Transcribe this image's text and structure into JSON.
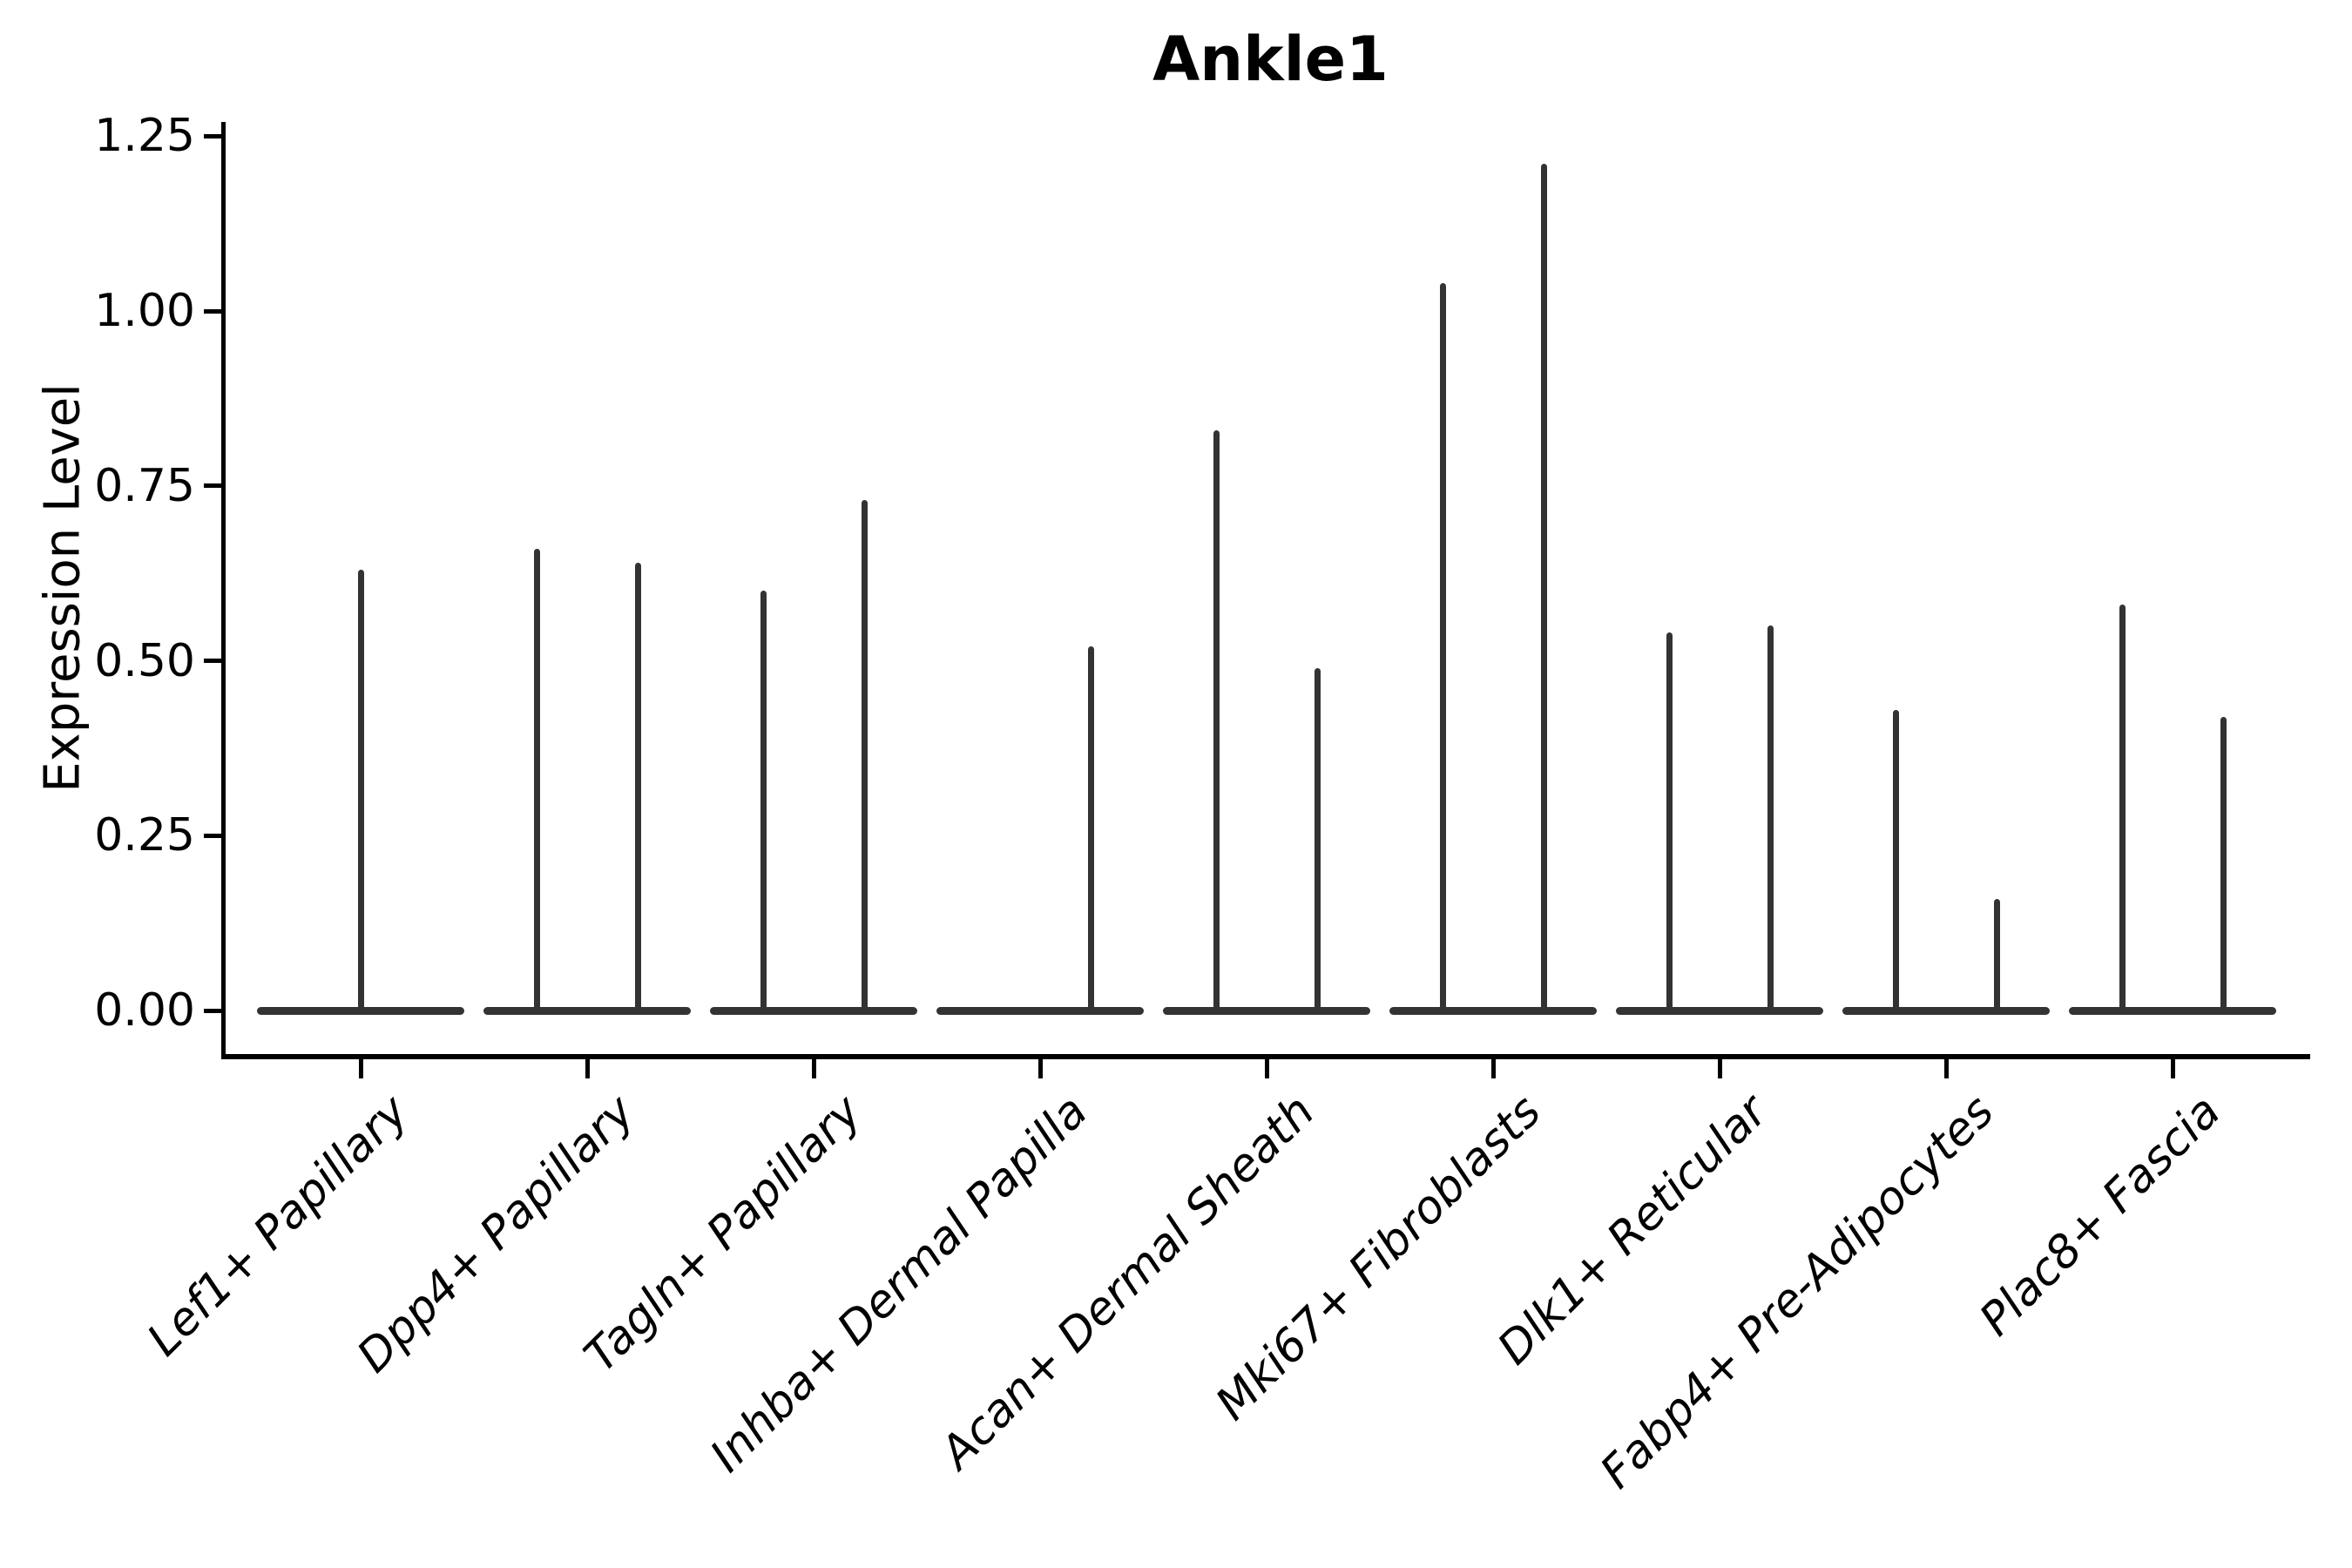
{
  "title": "Ankle1",
  "y_axis": {
    "label": "Expression Level",
    "tick_labels": [
      "0.00",
      "0.25",
      "0.50",
      "0.75",
      "1.00",
      "1.25"
    ]
  },
  "chart_data": {
    "type": "violin",
    "title": "Ankle1",
    "xlabel": "",
    "ylabel": "Expression Level",
    "ylim": [
      0,
      1.25
    ],
    "yticks": [
      0.0,
      0.25,
      0.5,
      0.75,
      1.0,
      1.25
    ],
    "ytick_labels": [
      "0.00",
      "0.25",
      "0.50",
      "0.75",
      "1.00",
      "1.25"
    ],
    "grid": false,
    "legend_position": "none",
    "categories": [
      "Lef1+ Papillary",
      "Dpp4+ Papillary",
      "Tagln+ Papillary",
      "Inhba+ Dermal Papilla",
      "Acan+ Dermal Sheath",
      "Mki67+ Fibroblasts",
      "Dlk1+ Reticular",
      "Fabp4+ Pre-Adipocytes",
      "Plac8+ Fascia"
    ],
    "description": "Violin plot of Ankle1 expression; each category shows a flat violin body at 0 with thin vertical spikes up to the maximum expression of the few positive cells",
    "baseline_value": 0.0,
    "violins": [
      {
        "category": "Lef1+ Papillary",
        "spikes": [
          {
            "pos": "center",
            "value": 0.63
          }
        ]
      },
      {
        "category": "Dpp4+ Papillary",
        "spikes": [
          {
            "pos": "left",
            "value": 0.66
          },
          {
            "pos": "right",
            "value": 0.64
          }
        ]
      },
      {
        "category": "Tagln+ Papillary",
        "spikes": [
          {
            "pos": "left",
            "value": 0.6
          },
          {
            "pos": "right",
            "value": 0.73
          }
        ]
      },
      {
        "category": "Inhba+ Dermal Papilla",
        "spikes": [
          {
            "pos": "right",
            "value": 0.52
          }
        ]
      },
      {
        "category": "Acan+ Dermal Sheath",
        "spikes": [
          {
            "pos": "left",
            "value": 0.83
          },
          {
            "pos": "right",
            "value": 0.49
          }
        ]
      },
      {
        "category": "Mki67+ Fibroblasts",
        "spikes": [
          {
            "pos": "left",
            "value": 1.04
          },
          {
            "pos": "right",
            "value": 1.21
          }
        ]
      },
      {
        "category": "Dlk1+ Reticular",
        "spikes": [
          {
            "pos": "left",
            "value": 0.54
          },
          {
            "pos": "right",
            "value": 0.55
          }
        ]
      },
      {
        "category": "Fabp4+ Pre-Adipocytes",
        "spikes": [
          {
            "pos": "left",
            "value": 0.43
          },
          {
            "pos": "right",
            "value": 0.16
          }
        ]
      },
      {
        "category": "Plac8+ Fascia",
        "spikes": [
          {
            "pos": "left",
            "value": 0.58
          },
          {
            "pos": "right",
            "value": 0.42
          }
        ]
      }
    ],
    "colors": {
      "violin_line": "#333333",
      "axis": "#000000",
      "text": "#000000",
      "background": "#ffffff"
    }
  }
}
